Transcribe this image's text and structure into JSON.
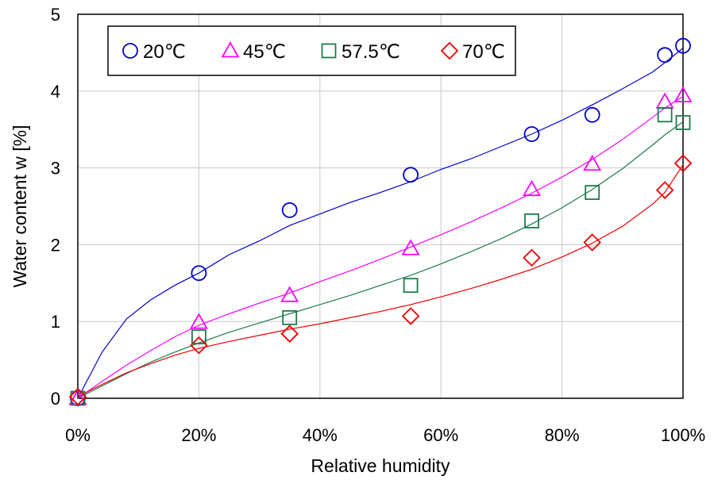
{
  "chart_data": {
    "type": "scatter",
    "title": "",
    "xlabel": "Relative humidity",
    "ylabel": "Water content w [%]",
    "xlim": [
      0,
      100
    ],
    "ylim": [
      0,
      5
    ],
    "x_ticks": [
      0,
      20,
      40,
      60,
      80,
      100
    ],
    "x_tick_labels": [
      "0%",
      "20%",
      "40%",
      "60%",
      "80%",
      "100%"
    ],
    "y_ticks": [
      0,
      1,
      2,
      3,
      4,
      5
    ],
    "y_tick_labels": [
      "0",
      "1",
      "2",
      "3",
      "4",
      "5"
    ],
    "grid": true,
    "legend_position": "top-left",
    "series": [
      {
        "name": "20℃",
        "marker": "circle",
        "color": "#0000cc",
        "points": [
          [
            0,
            0.0
          ],
          [
            20,
            1.63
          ],
          [
            35,
            2.45
          ],
          [
            55,
            2.91
          ],
          [
            75,
            3.44
          ],
          [
            85,
            3.69
          ],
          [
            97,
            4.47
          ],
          [
            100,
            4.59
          ]
        ],
        "fit": [
          [
            0,
            0.0
          ],
          [
            2,
            0.3
          ],
          [
            4,
            0.6
          ],
          [
            8,
            1.03
          ],
          [
            12,
            1.28
          ],
          [
            16,
            1.47
          ],
          [
            20,
            1.63
          ],
          [
            25,
            1.87
          ],
          [
            30,
            2.05
          ],
          [
            35,
            2.25
          ],
          [
            40,
            2.4
          ],
          [
            45,
            2.55
          ],
          [
            50,
            2.68
          ],
          [
            55,
            2.82
          ],
          [
            60,
            2.98
          ],
          [
            65,
            3.12
          ],
          [
            70,
            3.28
          ],
          [
            75,
            3.44
          ],
          [
            80,
            3.62
          ],
          [
            85,
            3.82
          ],
          [
            90,
            4.03
          ],
          [
            95,
            4.25
          ],
          [
            97,
            4.37
          ],
          [
            100,
            4.56
          ]
        ]
      },
      {
        "name": "45℃",
        "marker": "triangle",
        "color": "#ff00ff",
        "points": [
          [
            0,
            0.0
          ],
          [
            20,
            0.99
          ],
          [
            35,
            1.34
          ],
          [
            55,
            1.95
          ],
          [
            75,
            2.72
          ],
          [
            85,
            3.05
          ],
          [
            97,
            3.86
          ],
          [
            100,
            3.94
          ]
        ],
        "fit": [
          [
            0,
            0.0
          ],
          [
            4,
            0.22
          ],
          [
            8,
            0.43
          ],
          [
            12,
            0.62
          ],
          [
            16,
            0.8
          ],
          [
            20,
            0.95
          ],
          [
            25,
            1.1
          ],
          [
            30,
            1.24
          ],
          [
            35,
            1.37
          ],
          [
            40,
            1.52
          ],
          [
            45,
            1.66
          ],
          [
            50,
            1.81
          ],
          [
            55,
            1.97
          ],
          [
            60,
            2.13
          ],
          [
            65,
            2.3
          ],
          [
            70,
            2.48
          ],
          [
            75,
            2.67
          ],
          [
            80,
            2.88
          ],
          [
            85,
            3.11
          ],
          [
            90,
            3.37
          ],
          [
            95,
            3.66
          ],
          [
            97,
            3.78
          ],
          [
            100,
            3.93
          ]
        ]
      },
      {
        "name": "57.5℃",
        "marker": "square",
        "color": "#1e7a4a",
        "points": [
          [
            0,
            0.0
          ],
          [
            20,
            0.8
          ],
          [
            35,
            1.05
          ],
          [
            55,
            1.47
          ],
          [
            75,
            2.31
          ],
          [
            85,
            2.68
          ],
          [
            97,
            3.69
          ],
          [
            100,
            3.59
          ]
        ],
        "fit": [
          [
            0,
            0.0
          ],
          [
            4,
            0.16
          ],
          [
            8,
            0.32
          ],
          [
            12,
            0.47
          ],
          [
            16,
            0.6
          ],
          [
            20,
            0.72
          ],
          [
            25,
            0.86
          ],
          [
            30,
            0.98
          ],
          [
            35,
            1.1
          ],
          [
            40,
            1.22
          ],
          [
            45,
            1.34
          ],
          [
            50,
            1.47
          ],
          [
            55,
            1.6
          ],
          [
            60,
            1.75
          ],
          [
            65,
            1.91
          ],
          [
            70,
            2.08
          ],
          [
            75,
            2.27
          ],
          [
            80,
            2.48
          ],
          [
            85,
            2.72
          ],
          [
            90,
            2.99
          ],
          [
            95,
            3.3
          ],
          [
            97,
            3.43
          ],
          [
            100,
            3.6
          ]
        ]
      },
      {
        "name": "70℃",
        "marker": "diamond",
        "color": "#ee0000",
        "points": [
          [
            0,
            0.02
          ],
          [
            20,
            0.69
          ],
          [
            35,
            0.84
          ],
          [
            55,
            1.07
          ],
          [
            75,
            1.83
          ],
          [
            85,
            2.03
          ],
          [
            97,
            2.71
          ],
          [
            100,
            3.06
          ]
        ],
        "fit": [
          [
            0,
            0.02
          ],
          [
            4,
            0.18
          ],
          [
            8,
            0.33
          ],
          [
            12,
            0.45
          ],
          [
            16,
            0.56
          ],
          [
            20,
            0.65
          ],
          [
            25,
            0.74
          ],
          [
            30,
            0.82
          ],
          [
            35,
            0.9
          ],
          [
            40,
            0.97
          ],
          [
            45,
            1.05
          ],
          [
            50,
            1.13
          ],
          [
            55,
            1.22
          ],
          [
            60,
            1.32
          ],
          [
            65,
            1.43
          ],
          [
            70,
            1.55
          ],
          [
            75,
            1.68
          ],
          [
            80,
            1.84
          ],
          [
            85,
            2.02
          ],
          [
            90,
            2.24
          ],
          [
            95,
            2.53
          ],
          [
            97,
            2.68
          ],
          [
            100,
            3.04
          ]
        ]
      }
    ]
  }
}
